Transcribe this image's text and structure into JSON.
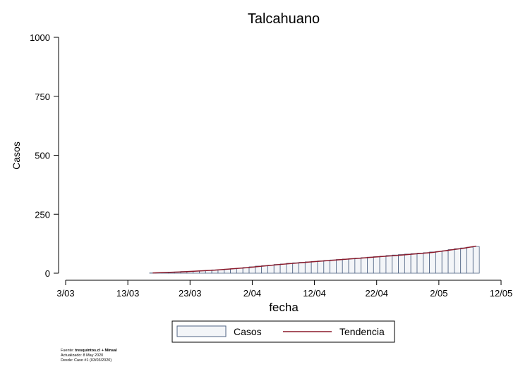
{
  "chart_data": {
    "type": "bar",
    "title": "Talcahuano",
    "xlabel": "fecha",
    "ylabel": "Casos",
    "ylim": [
      0,
      1000
    ],
    "yticks": [
      "0",
      "250",
      "500",
      "750",
      "1000"
    ],
    "xlim": [
      "2020-03-03",
      "2020-05-12"
    ],
    "xticks": [
      {
        "date": "2020-03-03",
        "label": "3/03"
      },
      {
        "date": "2020-03-13",
        "label": "13/03"
      },
      {
        "date": "2020-03-23",
        "label": "23/03"
      },
      {
        "date": "2020-04-02",
        "label": "2/04"
      },
      {
        "date": "2020-04-12",
        "label": "12/04"
      },
      {
        "date": "2020-04-22",
        "label": "22/04"
      },
      {
        "date": "2020-05-02",
        "label": "2/05"
      },
      {
        "date": "2020-05-12",
        "label": "12/05"
      }
    ],
    "grid": false,
    "legend_position": "bottom",
    "series": [
      {
        "name": "Casos",
        "kind": "bar",
        "color": "#f3f5f8",
        "edge_color": "#4f6383",
        "x": [
          "2020-03-17",
          "2020-03-18",
          "2020-03-19",
          "2020-03-20",
          "2020-03-21",
          "2020-03-22",
          "2020-03-23",
          "2020-03-24",
          "2020-03-25",
          "2020-03-26",
          "2020-03-27",
          "2020-03-28",
          "2020-03-29",
          "2020-03-30",
          "2020-03-31",
          "2020-04-01",
          "2020-04-02",
          "2020-04-03",
          "2020-04-04",
          "2020-04-05",
          "2020-04-06",
          "2020-04-07",
          "2020-04-08",
          "2020-04-09",
          "2020-04-10",
          "2020-04-11",
          "2020-04-12",
          "2020-04-13",
          "2020-04-14",
          "2020-04-15",
          "2020-04-16",
          "2020-04-17",
          "2020-04-18",
          "2020-04-19",
          "2020-04-20",
          "2020-04-21",
          "2020-04-22",
          "2020-04-23",
          "2020-04-24",
          "2020-04-25",
          "2020-04-26",
          "2020-04-27",
          "2020-04-28",
          "2020-04-29",
          "2020-04-30",
          "2020-05-01",
          "2020-05-02",
          "2020-05-03",
          "2020-05-04",
          "2020-05-05",
          "2020-05-06",
          "2020-05-07",
          "2020-05-08"
        ],
        "values": [
          1,
          2,
          3,
          4,
          5,
          7,
          8,
          9,
          10,
          12,
          14,
          15,
          17,
          19,
          21,
          24,
          27,
          30,
          32,
          34,
          37,
          39,
          42,
          44,
          46,
          48,
          50,
          52,
          54,
          56,
          58,
          60,
          62,
          64,
          66,
          68,
          70,
          72,
          75,
          77,
          79,
          81,
          83,
          85,
          87,
          90,
          92,
          95,
          100,
          104,
          107,
          110,
          113
        ]
      },
      {
        "name": "Tendencia",
        "kind": "line",
        "color": "#8b1a2b",
        "x": [
          "2020-03-17",
          "2020-03-22",
          "2020-03-27",
          "2020-04-01",
          "2020-04-06",
          "2020-04-11",
          "2020-04-16",
          "2020-04-21",
          "2020-04-26",
          "2020-05-01",
          "2020-05-06",
          "2020-05-08"
        ],
        "values": [
          1,
          6,
          13,
          23,
          36,
          47,
          57,
          67,
          77,
          88,
          106,
          115
        ]
      }
    ]
  },
  "source": {
    "label": "Fuente: ",
    "value": "tresquintos.cl + Minsal",
    "updated": "Actualizado: 8 May 2020",
    "since": "Desde: Caso #1  (03/03/2020)"
  }
}
